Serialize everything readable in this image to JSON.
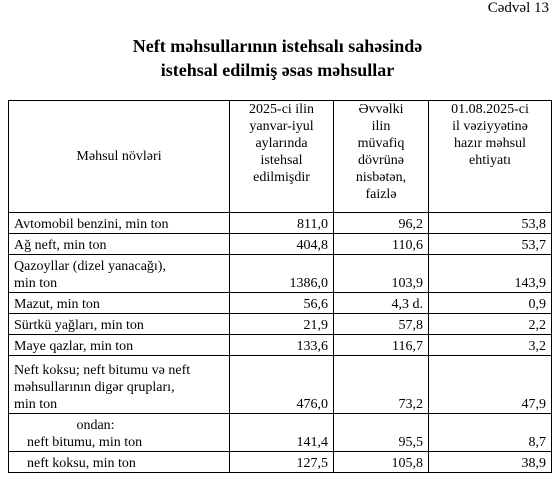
{
  "table_number": "Cədvəl 13",
  "title": {
    "line1": "Neft məhsullarının istehsalı sahəsində",
    "line2": "istehsal edilmiş əsas məhsullar"
  },
  "table": {
    "headers": {
      "product": "Məhsul növləri",
      "col1": [
        "2025-ci ilin",
        "yanvar-iyul",
        "aylarında",
        "istehsal",
        "edilmişdir"
      ],
      "col2": [
        "Əvvəlki",
        "ilin",
        "müvafiq",
        "dövrünə",
        "nisbətən,",
        "faizlə"
      ],
      "col3": [
        "01.08.2025-ci",
        "il vəziyyətinə",
        "hazır məhsul",
        "ehtiyatı"
      ]
    },
    "rows": [
      {
        "label": [
          "Avtomobil benzini, min ton"
        ],
        "produced": "811,0",
        "ratio": "96,2",
        "stock": "53,8"
      },
      {
        "label": [
          "Ağ neft, min ton"
        ],
        "produced": "404,8",
        "ratio": "110,6",
        "stock": "53,7"
      },
      {
        "label": [
          "Qazoyllar (dizel yanacağı),",
          "min ton"
        ],
        "produced": "1386,0",
        "ratio": "103,9",
        "stock": "143,9"
      },
      {
        "label": [
          "Mazut, min ton"
        ],
        "produced": "56,6",
        "ratio": "4,3 d.",
        "stock": "0,9"
      },
      {
        "label": [
          "Sürtkü yağları, min ton"
        ],
        "produced": "21,9",
        "ratio": "57,8",
        "stock": "2,2"
      },
      {
        "label": [
          "Maye qazlar, min ton"
        ],
        "produced": "133,6",
        "ratio": "116,7",
        "stock": "3,2"
      },
      {
        "label": [
          "Neft koksu; neft bitumu və neft",
          "məhsullarının digər qrupları,",
          "min ton"
        ],
        "produced": "476,0",
        "ratio": "73,2",
        "stock": "47,9"
      },
      {
        "label": [
          "ondan:",
          "neft bitumu, min ton"
        ],
        "produced": "141,4",
        "ratio": "95,5",
        "stock": "8,7"
      },
      {
        "label": [
          "neft koksu, min ton"
        ],
        "produced": "127,5",
        "ratio": "105,8",
        "stock": "38,9"
      }
    ]
  }
}
